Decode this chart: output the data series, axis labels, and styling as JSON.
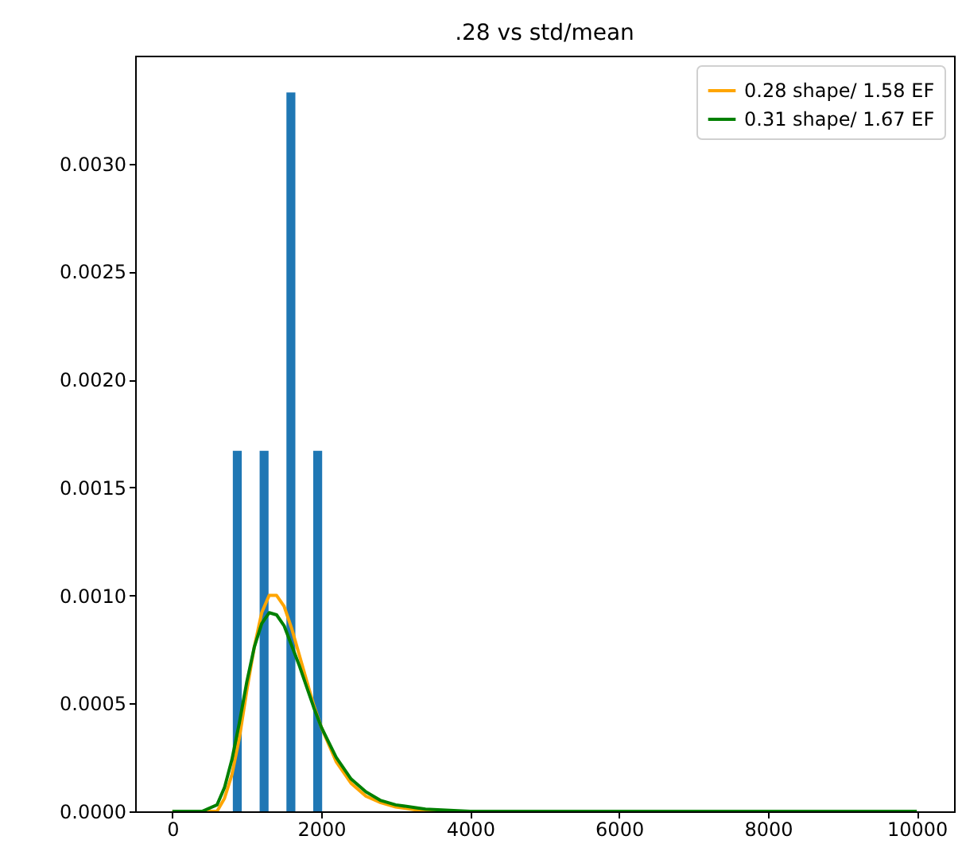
{
  "chart_data": {
    "type": "histogram",
    "title": ".28 vs std/mean",
    "bins": [
      812,
      932,
      1052,
      1172,
      1292,
      1412,
      1532,
      1652,
      1772,
      1892,
      2012
    ],
    "values": [
      0.00167,
      0,
      0,
      0.00167,
      0,
      0,
      0.00333,
      0,
      0,
      0.00167
    ],
    "color": "#1f77b4",
    "series": [
      {
        "type": "line",
        "name": "0.28 shape/ 1.58 EF",
        "color": "#ffa500",
        "x": [
          0,
          400,
          600,
          700,
          800,
          900,
          1000,
          1100,
          1200,
          1300,
          1400,
          1500,
          1600,
          1700,
          1800,
          1900,
          2000,
          2200,
          2400,
          2600,
          2800,
          3000,
          3400,
          4000
        ],
        "values": [
          0,
          0,
          0,
          6e-05,
          0.00017,
          0.00034,
          0.00056,
          0.00076,
          0.00092,
          0.001,
          0.001,
          0.00095,
          0.00085,
          0.00073,
          0.00061,
          0.00049,
          0.00039,
          0.00023,
          0.00013,
          7e-05,
          4e-05,
          2e-05,
          0,
          0
        ]
      },
      {
        "type": "line",
        "name": "0.31 shape/ 1.67 EF",
        "color": "#008000",
        "x": [
          0,
          400,
          600,
          700,
          800,
          900,
          1000,
          1100,
          1200,
          1300,
          1400,
          1500,
          1600,
          1700,
          1800,
          1900,
          2000,
          2200,
          2400,
          2600,
          2800,
          3000,
          3400,
          4000,
          5000,
          10000
        ],
        "values": [
          0,
          0,
          3e-05,
          0.00011,
          0.00024,
          0.00041,
          0.0006,
          0.00076,
          0.00087,
          0.00092,
          0.00091,
          0.00086,
          0.00077,
          0.00068,
          0.00058,
          0.00048,
          0.00039,
          0.00025,
          0.00015,
          9e-05,
          5e-05,
          3e-05,
          1e-05,
          0,
          0,
          0
        ]
      }
    ],
    "xlim": [
      -500,
      10500
    ],
    "xticks": [
      0,
      2000,
      4000,
      6000,
      8000,
      10000
    ],
    "ylim": [
      0,
      0.0035
    ],
    "yticks": [
      {
        "value": 0,
        "label": "0.0000"
      },
      {
        "value": 0.0005,
        "label": "0.0005"
      },
      {
        "value": 0.001,
        "label": "0.0010"
      },
      {
        "value": 0.0015,
        "label": "0.0015"
      },
      {
        "value": 0.002,
        "label": "0.0020"
      },
      {
        "value": 0.0025,
        "label": "0.0025"
      },
      {
        "value": 0.003,
        "label": "0.0030"
      }
    ],
    "legend": "top right"
  }
}
